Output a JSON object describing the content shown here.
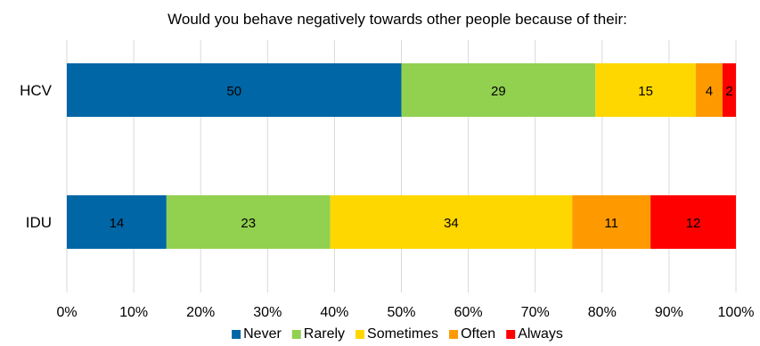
{
  "chart_data": {
    "type": "bar",
    "orientation": "horizontal",
    "stacked": "percent",
    "title": "Would you behave negatively towards other people because of their:",
    "categories": [
      "HCV",
      "IDU"
    ],
    "series": [
      {
        "name": "Never",
        "color": "#0066A6",
        "values": [
          50,
          14
        ]
      },
      {
        "name": "Rarely",
        "color": "#92D050",
        "values": [
          29,
          23
        ]
      },
      {
        "name": "Sometimes",
        "color": "#FFD700",
        "values": [
          15,
          34
        ]
      },
      {
        "name": "Often",
        "color": "#FF9900",
        "values": [
          4,
          11
        ]
      },
      {
        "name": "Always",
        "color": "#FF0000",
        "values": [
          2,
          12
        ]
      }
    ],
    "x_ticks": [
      "0%",
      "10%",
      "20%",
      "30%",
      "40%",
      "50%",
      "60%",
      "70%",
      "80%",
      "90%",
      "100%"
    ],
    "xlim": [
      0,
      100
    ],
    "grid": true,
    "legend": "bottom"
  }
}
